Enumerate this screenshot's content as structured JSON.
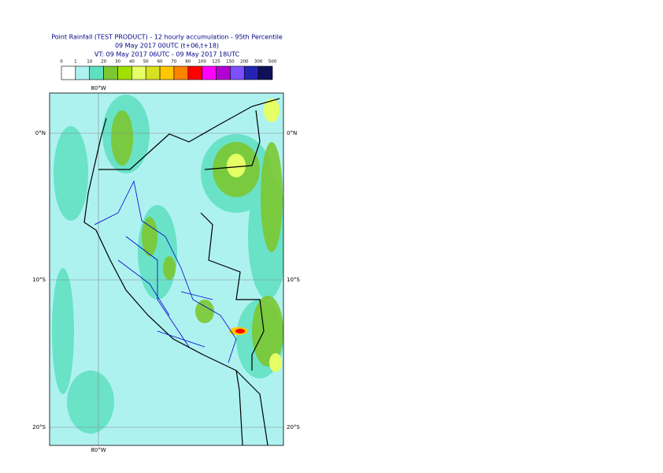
{
  "header": {
    "title": [
      "Point Rainfall (TEST PRODUCT) - 12 hourly accumulation - 95th Percentile",
      "09 May 2017 00UTC (t+06,t+18)",
      "VT: 09 May 2017 06UTC - 09 May 2017 18UTC"
    ]
  },
  "legend": {
    "labels": [
      "0",
      "1",
      "10",
      "20",
      "30",
      "40",
      "50",
      "60",
      "70",
      "80",
      "100",
      "125",
      "150",
      "200",
      "300",
      "500"
    ],
    "colors": [
      "#ffffff",
      "#aef2f0",
      "#5ee0c0",
      "#7cc832",
      "#a2e000",
      "#e6ff66",
      "#d8e022",
      "#ffc800",
      "#ff8400",
      "#ff0000",
      "#ff00ff",
      "#b400d4",
      "#7c50ff",
      "#2424b4",
      "#10105a"
    ]
  },
  "map": {
    "lat_labels": [
      "0°N",
      "10°S",
      "20°S"
    ],
    "lon_labels": [
      "80°W"
    ]
  }
}
